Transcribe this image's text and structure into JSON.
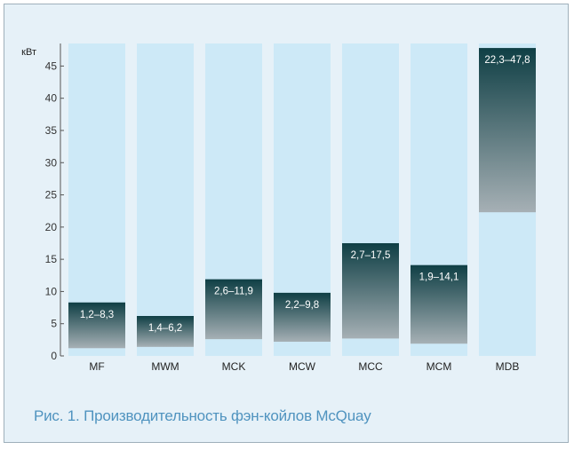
{
  "caption": "Рис. 1. Производительность фэн-койлов McQuay",
  "chart_data": {
    "type": "bar",
    "ylabel": "кВт",
    "ylim": [
      0,
      48.5
    ],
    "yticks": [
      0,
      5,
      10,
      15,
      20,
      25,
      30,
      35,
      40,
      45
    ],
    "categories": [
      "MF",
      "MWM",
      "MCK",
      "MCW",
      "MCC",
      "MCM",
      "MDB"
    ],
    "ranges": [
      {
        "min": 1.2,
        "max": 8.3,
        "label": "1,2–8,3"
      },
      {
        "min": 1.4,
        "max": 6.2,
        "label": "1,4–6,2"
      },
      {
        "min": 2.6,
        "max": 11.9,
        "label": "2,6–11,9"
      },
      {
        "min": 2.2,
        "max": 9.8,
        "label": "2,2–9,8"
      },
      {
        "min": 2.7,
        "max": 17.5,
        "label": "2,7–17,5"
      },
      {
        "min": 1.9,
        "max": 14.1,
        "label": "1,9–14,1"
      },
      {
        "min": 22.3,
        "max": 47.8,
        "label": "22,3–47,8"
      }
    ],
    "colors": {
      "column_background": "#cde9f7",
      "bar_top": "#0f3f45",
      "bar_bottom": "#a6b0b5",
      "label_text": "#ffffff"
    },
    "grid": false
  }
}
